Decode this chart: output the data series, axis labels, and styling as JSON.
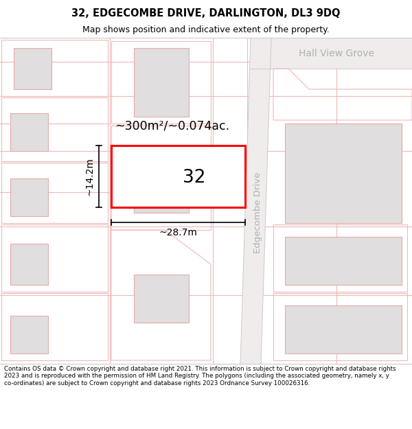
{
  "title_line1": "32, EDGECOMBE DRIVE, DARLINGTON, DL3 9DQ",
  "title_line2": "Map shows position and indicative extent of the property.",
  "footer_text": "Contains OS data © Crown copyright and database right 2021. This information is subject to Crown copyright and database rights 2023 and is reproduced with the permission of HM Land Registry. The polygons (including the associated geometry, namely x, y co-ordinates) are subject to Crown copyright and database rights 2023 Ordnance Survey 100026316.",
  "area_text": "~300m²/~0.074ac.",
  "label_number": "32",
  "dim_width": "~28.7m",
  "dim_height": "~14.2m",
  "street_label1": "Edgecombe Drive",
  "street_label2": "Hall View Grove",
  "plot_color": "#ff0000",
  "building_fill": "#e0dede",
  "building_outline": "#e8a8a8",
  "plot_line_color": "#f0b8b8",
  "road_color": "#e8e4e4",
  "map_bg": "#ffffff"
}
